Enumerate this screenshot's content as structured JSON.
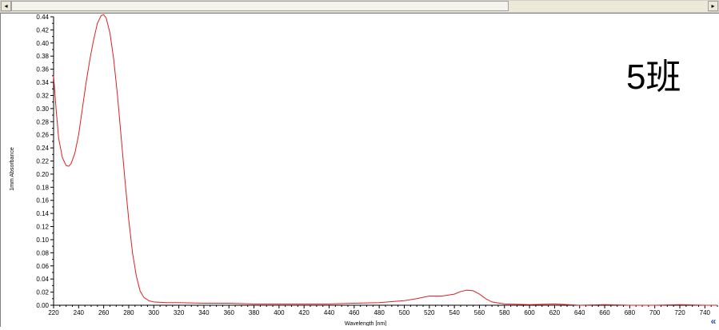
{
  "overlay_label": "5班",
  "collapse_glyph": "«",
  "scroll_left_glyph": "◂",
  "scroll_right_glyph": "▸",
  "chart_data": {
    "type": "line",
    "xlabel": "Wavelength [nm]",
    "ylabel": "1mm Absorbance",
    "xlim": [
      220,
      750
    ],
    "ylim": [
      0,
      0.44
    ],
    "x_ticks": [
      220,
      240,
      260,
      280,
      300,
      320,
      340,
      360,
      380,
      400,
      420,
      440,
      460,
      480,
      500,
      520,
      540,
      560,
      580,
      600,
      620,
      640,
      660,
      680,
      700,
      720,
      740
    ],
    "y_ticks": [
      0.0,
      0.02,
      0.04,
      0.06,
      0.08,
      0.1,
      0.12,
      0.14,
      0.16,
      0.18,
      0.2,
      0.22,
      0.24,
      0.26,
      0.28,
      0.3,
      0.32,
      0.34,
      0.36,
      0.38,
      0.4,
      0.42,
      0.44
    ],
    "y_tick_labels": [
      "0.00",
      "0.02",
      "0.04",
      "0.06",
      "0.08",
      "0.10",
      "0.12",
      "0.14",
      "0.16",
      "0.18",
      "0.20",
      "0.22",
      "0.24",
      "0.26",
      "0.28",
      "0.30",
      "0.32",
      "0.34",
      "0.36",
      "0.38",
      "0.40",
      "0.42",
      "0.44"
    ],
    "grid": false,
    "series": [
      {
        "color": "#e02020",
        "points": [
          [
            220,
            0.35
          ],
          [
            222,
            0.3
          ],
          [
            224,
            0.255
          ],
          [
            227,
            0.225
          ],
          [
            230,
            0.213
          ],
          [
            232,
            0.212
          ],
          [
            234,
            0.216
          ],
          [
            237,
            0.232
          ],
          [
            240,
            0.26
          ],
          [
            243,
            0.3
          ],
          [
            246,
            0.34
          ],
          [
            249,
            0.375
          ],
          [
            252,
            0.405
          ],
          [
            255,
            0.43
          ],
          [
            258,
            0.442
          ],
          [
            260,
            0.443
          ],
          [
            262,
            0.438
          ],
          [
            265,
            0.415
          ],
          [
            268,
            0.375
          ],
          [
            271,
            0.32
          ],
          [
            274,
            0.255
          ],
          [
            277,
            0.19
          ],
          [
            280,
            0.13
          ],
          [
            283,
            0.08
          ],
          [
            286,
            0.045
          ],
          [
            289,
            0.022
          ],
          [
            292,
            0.012
          ],
          [
            296,
            0.007
          ],
          [
            300,
            0.005
          ],
          [
            310,
            0.004
          ],
          [
            320,
            0.004
          ],
          [
            340,
            0.003
          ],
          [
            360,
            0.003
          ],
          [
            380,
            0.002
          ],
          [
            400,
            0.002
          ],
          [
            420,
            0.002
          ],
          [
            440,
            0.002
          ],
          [
            460,
            0.003
          ],
          [
            480,
            0.004
          ],
          [
            500,
            0.007
          ],
          [
            510,
            0.01
          ],
          [
            520,
            0.014
          ],
          [
            530,
            0.014
          ],
          [
            540,
            0.017
          ],
          [
            545,
            0.021
          ],
          [
            550,
            0.023
          ],
          [
            555,
            0.022
          ],
          [
            560,
            0.017
          ],
          [
            565,
            0.01
          ],
          [
            570,
            0.005
          ],
          [
            580,
            0.002
          ],
          [
            600,
            0.001
          ],
          [
            620,
            0.002
          ],
          [
            640,
            0.0
          ],
          [
            660,
            0.001
          ],
          [
            680,
            0.0
          ],
          [
            700,
            0.0
          ],
          [
            720,
            0.001
          ],
          [
            740,
            0.0
          ],
          [
            750,
            0.0
          ]
        ]
      }
    ]
  }
}
